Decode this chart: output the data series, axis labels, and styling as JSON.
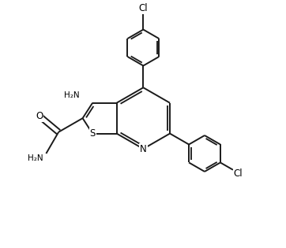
{
  "background_color": "#ffffff",
  "bond_color": "#1a1a1a",
  "text_color": "#000000",
  "lw": 1.4,
  "figsize": [
    3.62,
    3.15
  ],
  "dpi": 100,
  "xlim": [
    0,
    9.5
  ],
  "ylim": [
    0,
    8.3
  ]
}
